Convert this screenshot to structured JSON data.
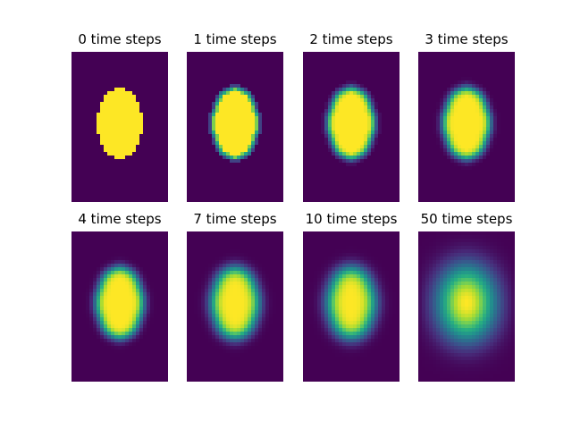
{
  "chart_data": {
    "type": "heatmap",
    "colormap": "viridis",
    "grid": false,
    "value_range": [
      0,
      1
    ],
    "panels": [
      {
        "title": "0 time steps",
        "steps": 0
      },
      {
        "title": "1 time steps",
        "steps": 1
      },
      {
        "title": "2 time steps",
        "steps": 2
      },
      {
        "title": "3 time steps",
        "steps": 3
      },
      {
        "title": "4 time steps",
        "steps": 4
      },
      {
        "title": "7 time steps",
        "steps": 7
      },
      {
        "title": "10 time steps",
        "steps": 10
      },
      {
        "title": "50 time steps",
        "steps": 50
      }
    ]
  }
}
